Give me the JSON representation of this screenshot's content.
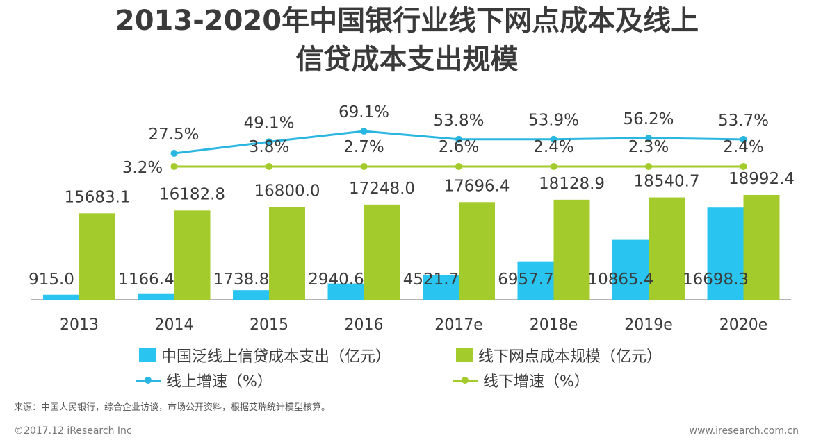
{
  "title_line1": "2013-2020年中国银行业线下网点成本及线上",
  "title_line2": "信贷成本支出规模",
  "chart_data": {
    "type": "bar",
    "categories": [
      "2013",
      "2014",
      "2015",
      "2016",
      "2017e",
      "2018e",
      "2019e",
      "2020e"
    ],
    "series": [
      {
        "name": "中国泛线上信贷成本支出（亿元）",
        "kind": "bar",
        "color": "#29c4ef",
        "values": [
          915.0,
          1166.4,
          1738.8,
          2940.6,
          4521.7,
          6957.7,
          10865.4,
          16698.3
        ],
        "labels": [
          "915.0",
          "1166.4",
          "1738.8",
          "2940.6",
          "4521.7",
          "6957.7",
          "10865.4",
          "16698.3"
        ]
      },
      {
        "name": "线下网点成本规模（亿元）",
        "kind": "bar",
        "color": "#a4cb2c",
        "values": [
          15683.1,
          16182.8,
          16800.0,
          17248.0,
          17696.4,
          18128.9,
          18540.7,
          18992.4
        ],
        "labels": [
          "15683.1",
          "16182.8",
          "16800.0",
          "17248.0",
          "17696.4",
          "18128.9",
          "18540.7",
          "18992.4"
        ]
      },
      {
        "name": "线上增速（%）",
        "kind": "line",
        "color": "#29b6e0",
        "values": [
          null,
          27.5,
          49.1,
          69.1,
          53.8,
          53.9,
          56.2,
          53.7
        ],
        "labels": [
          null,
          "27.5%",
          "49.1%",
          "69.1%",
          "53.8%",
          "53.9%",
          "56.2%",
          "53.7%"
        ]
      },
      {
        "name": "线下增速（%）",
        "kind": "line",
        "color": "#a4cb2c",
        "values": [
          null,
          3.2,
          3.8,
          2.7,
          2.6,
          2.4,
          2.3,
          2.4
        ],
        "labels": [
          null,
          "3.2%",
          "3.8%",
          "2.7%",
          "2.6%",
          "2.4%",
          "2.3%",
          "2.4%"
        ]
      }
    ],
    "ylim": [
      0,
      20000
    ],
    "growth_ylim": [
      0,
      70
    ],
    "legend_position": "bottom"
  },
  "legend": {
    "online_cost": "中国泛线上信贷成本支出（亿元）",
    "offline_cost": "线下网点成本规模（亿元）",
    "online_growth": "线上增速（%）",
    "offline_growth": "线下增速（%）"
  },
  "source": "来源：中国人民银行，综合企业访谈，市场公开资料，根据艾瑞统计模型核算。",
  "footer_left": "©2017.12 iResearch Inc",
  "footer_right": "www.iresearch.com.cn"
}
